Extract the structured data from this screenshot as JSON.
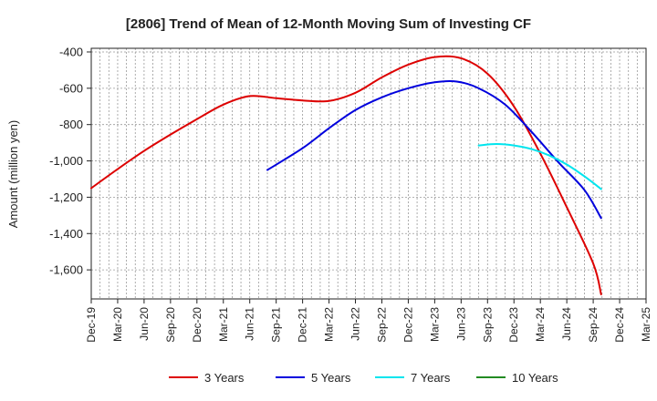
{
  "chart_data": {
    "type": "line",
    "title": "[2806]  Trend of Mean of 12-Month Moving Sum of Investing CF",
    "xlabel": "",
    "ylabel": "Amount (million yen)",
    "ylim": [
      -1760,
      -380
    ],
    "y_ticks": [
      -400,
      -600,
      -800,
      -1000,
      -1200,
      -1400,
      -1600
    ],
    "y_tick_labels": [
      "-400",
      "-600",
      "-800",
      "-1,000",
      "-1,200",
      "-1,400",
      "-1,600"
    ],
    "x_range": [
      0,
      63
    ],
    "x_tick_positions": [
      0,
      3,
      6,
      9,
      12,
      15,
      18,
      21,
      24,
      27,
      30,
      33,
      36,
      39,
      42,
      45,
      48,
      51,
      54,
      57,
      60,
      63
    ],
    "x_tick_labels": [
      "Dec-19",
      "Mar-20",
      "Jun-20",
      "Sep-20",
      "Dec-20",
      "Mar-21",
      "Jun-21",
      "Sep-21",
      "Dec-21",
      "Mar-22",
      "Jun-22",
      "Sep-22",
      "Dec-22",
      "Mar-23",
      "Jun-23",
      "Sep-23",
      "Dec-23",
      "Mar-24",
      "Jun-24",
      "Sep-24",
      "Dec-24",
      "Mar-25"
    ],
    "grid": true,
    "legend_position": "bottom",
    "series": [
      {
        "name": "3 Years",
        "color": "#dd0000",
        "points": [
          [
            0,
            -1150
          ],
          [
            3,
            -1045
          ],
          [
            6,
            -945
          ],
          [
            9,
            -855
          ],
          [
            12,
            -770
          ],
          [
            15,
            -690
          ],
          [
            18,
            -643
          ],
          [
            21,
            -655
          ],
          [
            24,
            -667
          ],
          [
            27,
            -670
          ],
          [
            30,
            -625
          ],
          [
            33,
            -540
          ],
          [
            36,
            -470
          ],
          [
            39,
            -428
          ],
          [
            42,
            -435
          ],
          [
            45,
            -520
          ],
          [
            48,
            -700
          ],
          [
            51,
            -960
          ],
          [
            54,
            -1255
          ],
          [
            57,
            -1565
          ],
          [
            57.9,
            -1735
          ]
        ]
      },
      {
        "name": "5 Years",
        "color": "#0000dd",
        "points": [
          [
            20,
            -1050
          ],
          [
            24,
            -930
          ],
          [
            27,
            -820
          ],
          [
            30,
            -720
          ],
          [
            33,
            -650
          ],
          [
            36,
            -600
          ],
          [
            39,
            -567
          ],
          [
            41.5,
            -563
          ],
          [
            44,
            -600
          ],
          [
            47,
            -690
          ],
          [
            50,
            -840
          ],
          [
            53,
            -1005
          ],
          [
            56,
            -1160
          ],
          [
            57.9,
            -1315
          ]
        ]
      },
      {
        "name": "7 Years",
        "color": "#00e5ee",
        "points": [
          [
            44,
            -915
          ],
          [
            46,
            -907
          ],
          [
            48,
            -915
          ],
          [
            50,
            -935
          ],
          [
            52,
            -970
          ],
          [
            54,
            -1020
          ],
          [
            56,
            -1085
          ],
          [
            57.9,
            -1155
          ]
        ]
      },
      {
        "name": "10 Years",
        "color": "#228b22",
        "points": []
      }
    ]
  }
}
